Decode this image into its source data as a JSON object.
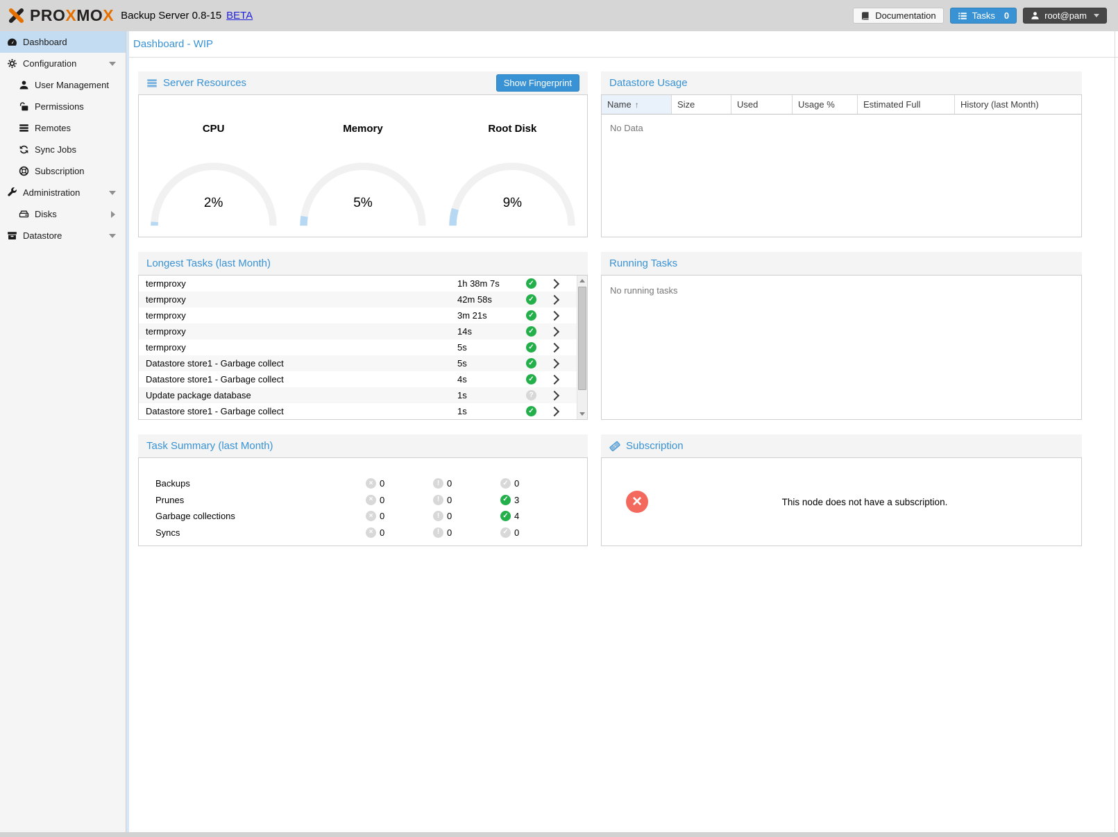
{
  "colors": {
    "accent": "#3892d4",
    "orange": "#E57000",
    "green": "#23b04a",
    "red": "#f4695e",
    "selected_nav": "#c3dcf2",
    "gauge_fill": "#b7d8f2"
  },
  "header": {
    "logo_parts": [
      {
        "t": "PRO",
        "orange": false
      },
      {
        "t": "X",
        "orange": true
      },
      {
        "t": "MO",
        "orange": false
      },
      {
        "t": "X",
        "orange": true
      }
    ],
    "product": "Backup Server 0.8-15",
    "beta": "BETA",
    "documentation": "Documentation",
    "tasks": "Tasks",
    "tasks_count": "0",
    "user": "root@pam"
  },
  "sidebar": {
    "items": [
      {
        "label": "Dashboard"
      },
      {
        "label": "Configuration"
      },
      {
        "label": "User Management"
      },
      {
        "label": "Permissions"
      },
      {
        "label": "Remotes"
      },
      {
        "label": "Sync Jobs"
      },
      {
        "label": "Subscription"
      },
      {
        "label": "Administration"
      },
      {
        "label": "Disks"
      },
      {
        "label": "Datastore"
      }
    ]
  },
  "content": {
    "page_title": "Dashboard - WIP",
    "server_resources": {
      "title": "Server Resources",
      "fingerprint_button": "Show Fingerprint",
      "gauges": [
        {
          "label": "CPU",
          "value": 2,
          "display": "2%"
        },
        {
          "label": "Memory",
          "value": 5,
          "display": "5%"
        },
        {
          "label": "Root Disk",
          "value": 9,
          "display": "9%"
        }
      ]
    },
    "datastore_usage": {
      "title": "Datastore Usage",
      "columns": [
        "Name",
        "Size",
        "Used",
        "Usage %",
        "Estimated Full",
        "History (last Month)"
      ],
      "sort_arrow": "↑",
      "empty": "No Data"
    },
    "longest_tasks": {
      "title": "Longest Tasks (last Month)",
      "rows": [
        {
          "name": "termproxy",
          "duration": "1h 38m 7s",
          "status_glyph": "✓",
          "status_class": "cic green"
        },
        {
          "name": "termproxy",
          "duration": "42m 58s",
          "status_glyph": "✓",
          "status_class": "cic green"
        },
        {
          "name": "termproxy",
          "duration": "3m 21s",
          "status_glyph": "✓",
          "status_class": "cic green"
        },
        {
          "name": "termproxy",
          "duration": "14s",
          "status_glyph": "✓",
          "status_class": "cic green"
        },
        {
          "name": "termproxy",
          "duration": "5s",
          "status_glyph": "✓",
          "status_class": "cic green"
        },
        {
          "name": "Datastore store1 - Garbage collect",
          "duration": "5s",
          "status_glyph": "✓",
          "status_class": "cic green"
        },
        {
          "name": "Datastore store1 - Garbage collect",
          "duration": "4s",
          "status_glyph": "✓",
          "status_class": "cic green"
        },
        {
          "name": "Update package database",
          "duration": "1s",
          "status_glyph": "?",
          "status_class": "cic gray"
        },
        {
          "name": "Datastore store1 - Garbage collect",
          "duration": "1s",
          "status_glyph": "✓",
          "status_class": "cic green"
        }
      ]
    },
    "running_tasks": {
      "title": "Running Tasks",
      "empty": "No running tasks"
    },
    "task_summary": {
      "title": "Task Summary (last Month)",
      "glyphs": {
        "error": "×",
        "warning": "!",
        "ok": "✓"
      },
      "rows": [
        {
          "label": "Backups",
          "error": "0",
          "warning": "0",
          "ok": "0",
          "ok_class": "cic gray"
        },
        {
          "label": "Prunes",
          "error": "0",
          "warning": "0",
          "ok": "3",
          "ok_class": "cic green"
        },
        {
          "label": "Garbage collections",
          "error": "0",
          "warning": "0",
          "ok": "4",
          "ok_class": "cic green"
        },
        {
          "label": "Syncs",
          "error": "0",
          "warning": "0",
          "ok": "0",
          "ok_class": "cic gray"
        }
      ]
    },
    "subscription": {
      "title": "Subscription",
      "message": "This node does not have a subscription."
    }
  }
}
